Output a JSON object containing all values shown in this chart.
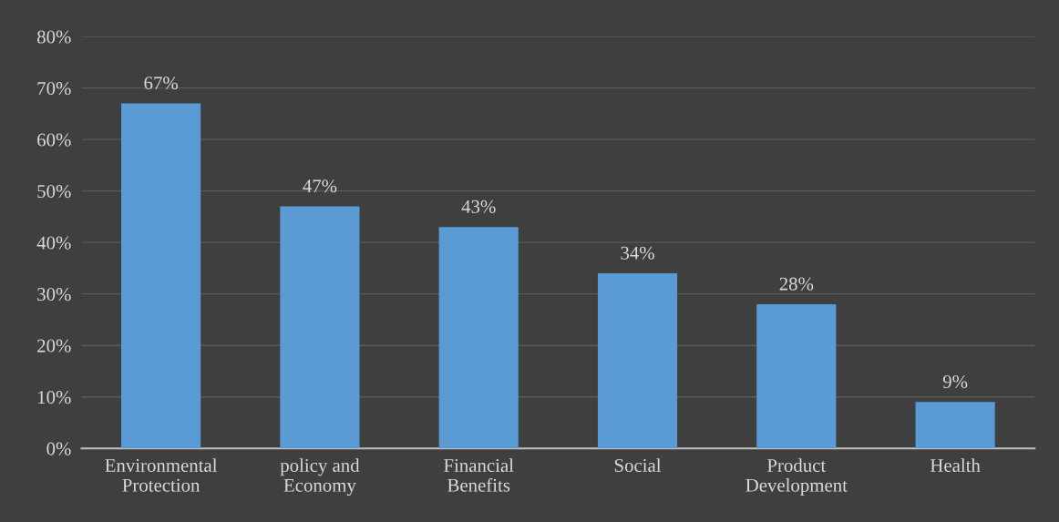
{
  "chart_data": {
    "type": "bar",
    "categories": [
      "Environmental\nProtection",
      "policy and\nEconomy",
      "Financial\nBenefits",
      "Social",
      "Product\nDevelopment",
      "Health"
    ],
    "values": [
      67,
      47,
      43,
      34,
      28,
      9
    ],
    "value_labels": [
      "67%",
      "47%",
      "43%",
      "34%",
      "28%",
      "9%"
    ],
    "color": "#5b9bd5",
    "ylim": [
      0,
      80
    ],
    "yticks": [
      {
        "value": 0,
        "label": "0%"
      },
      {
        "value": 10,
        "label": "10%"
      },
      {
        "value": 20,
        "label": "20%"
      },
      {
        "value": 30,
        "label": "30%"
      },
      {
        "value": 40,
        "label": "40%"
      },
      {
        "value": 50,
        "label": "50%"
      },
      {
        "value": 60,
        "label": "60%"
      },
      {
        "value": 70,
        "label": "70%"
      },
      {
        "value": 80,
        "label": "80%"
      }
    ],
    "grid": "y",
    "legend": false
  }
}
